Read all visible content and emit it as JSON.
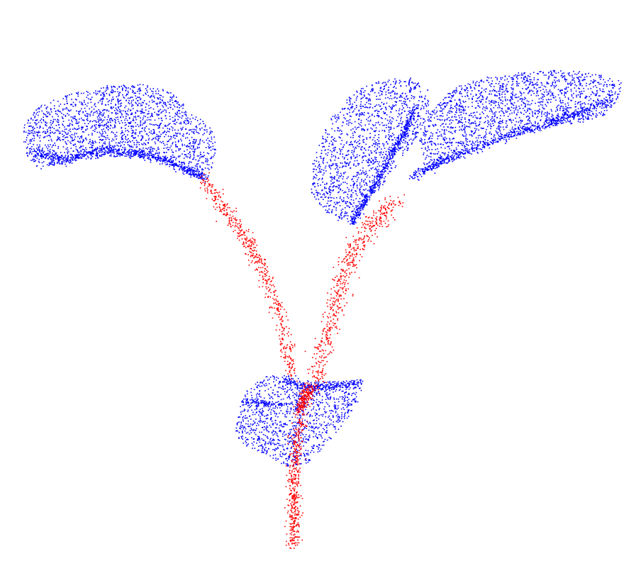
{
  "scene": {
    "subject": "plant-point-cloud",
    "colors": {
      "background": "#ffffff",
      "leaf": "#0000ff",
      "stem": "#ff0000"
    },
    "parts": [
      {
        "name": "left-leaf",
        "class": "leaf"
      },
      {
        "name": "right-inner-leaf",
        "class": "leaf"
      },
      {
        "name": "right-outer-leaf",
        "class": "leaf"
      },
      {
        "name": "lower-leaf-cluster",
        "class": "leaf"
      },
      {
        "name": "left-petiole",
        "class": "stem"
      },
      {
        "name": "right-petiole",
        "class": "stem"
      },
      {
        "name": "main-stem",
        "class": "stem"
      }
    ]
  }
}
